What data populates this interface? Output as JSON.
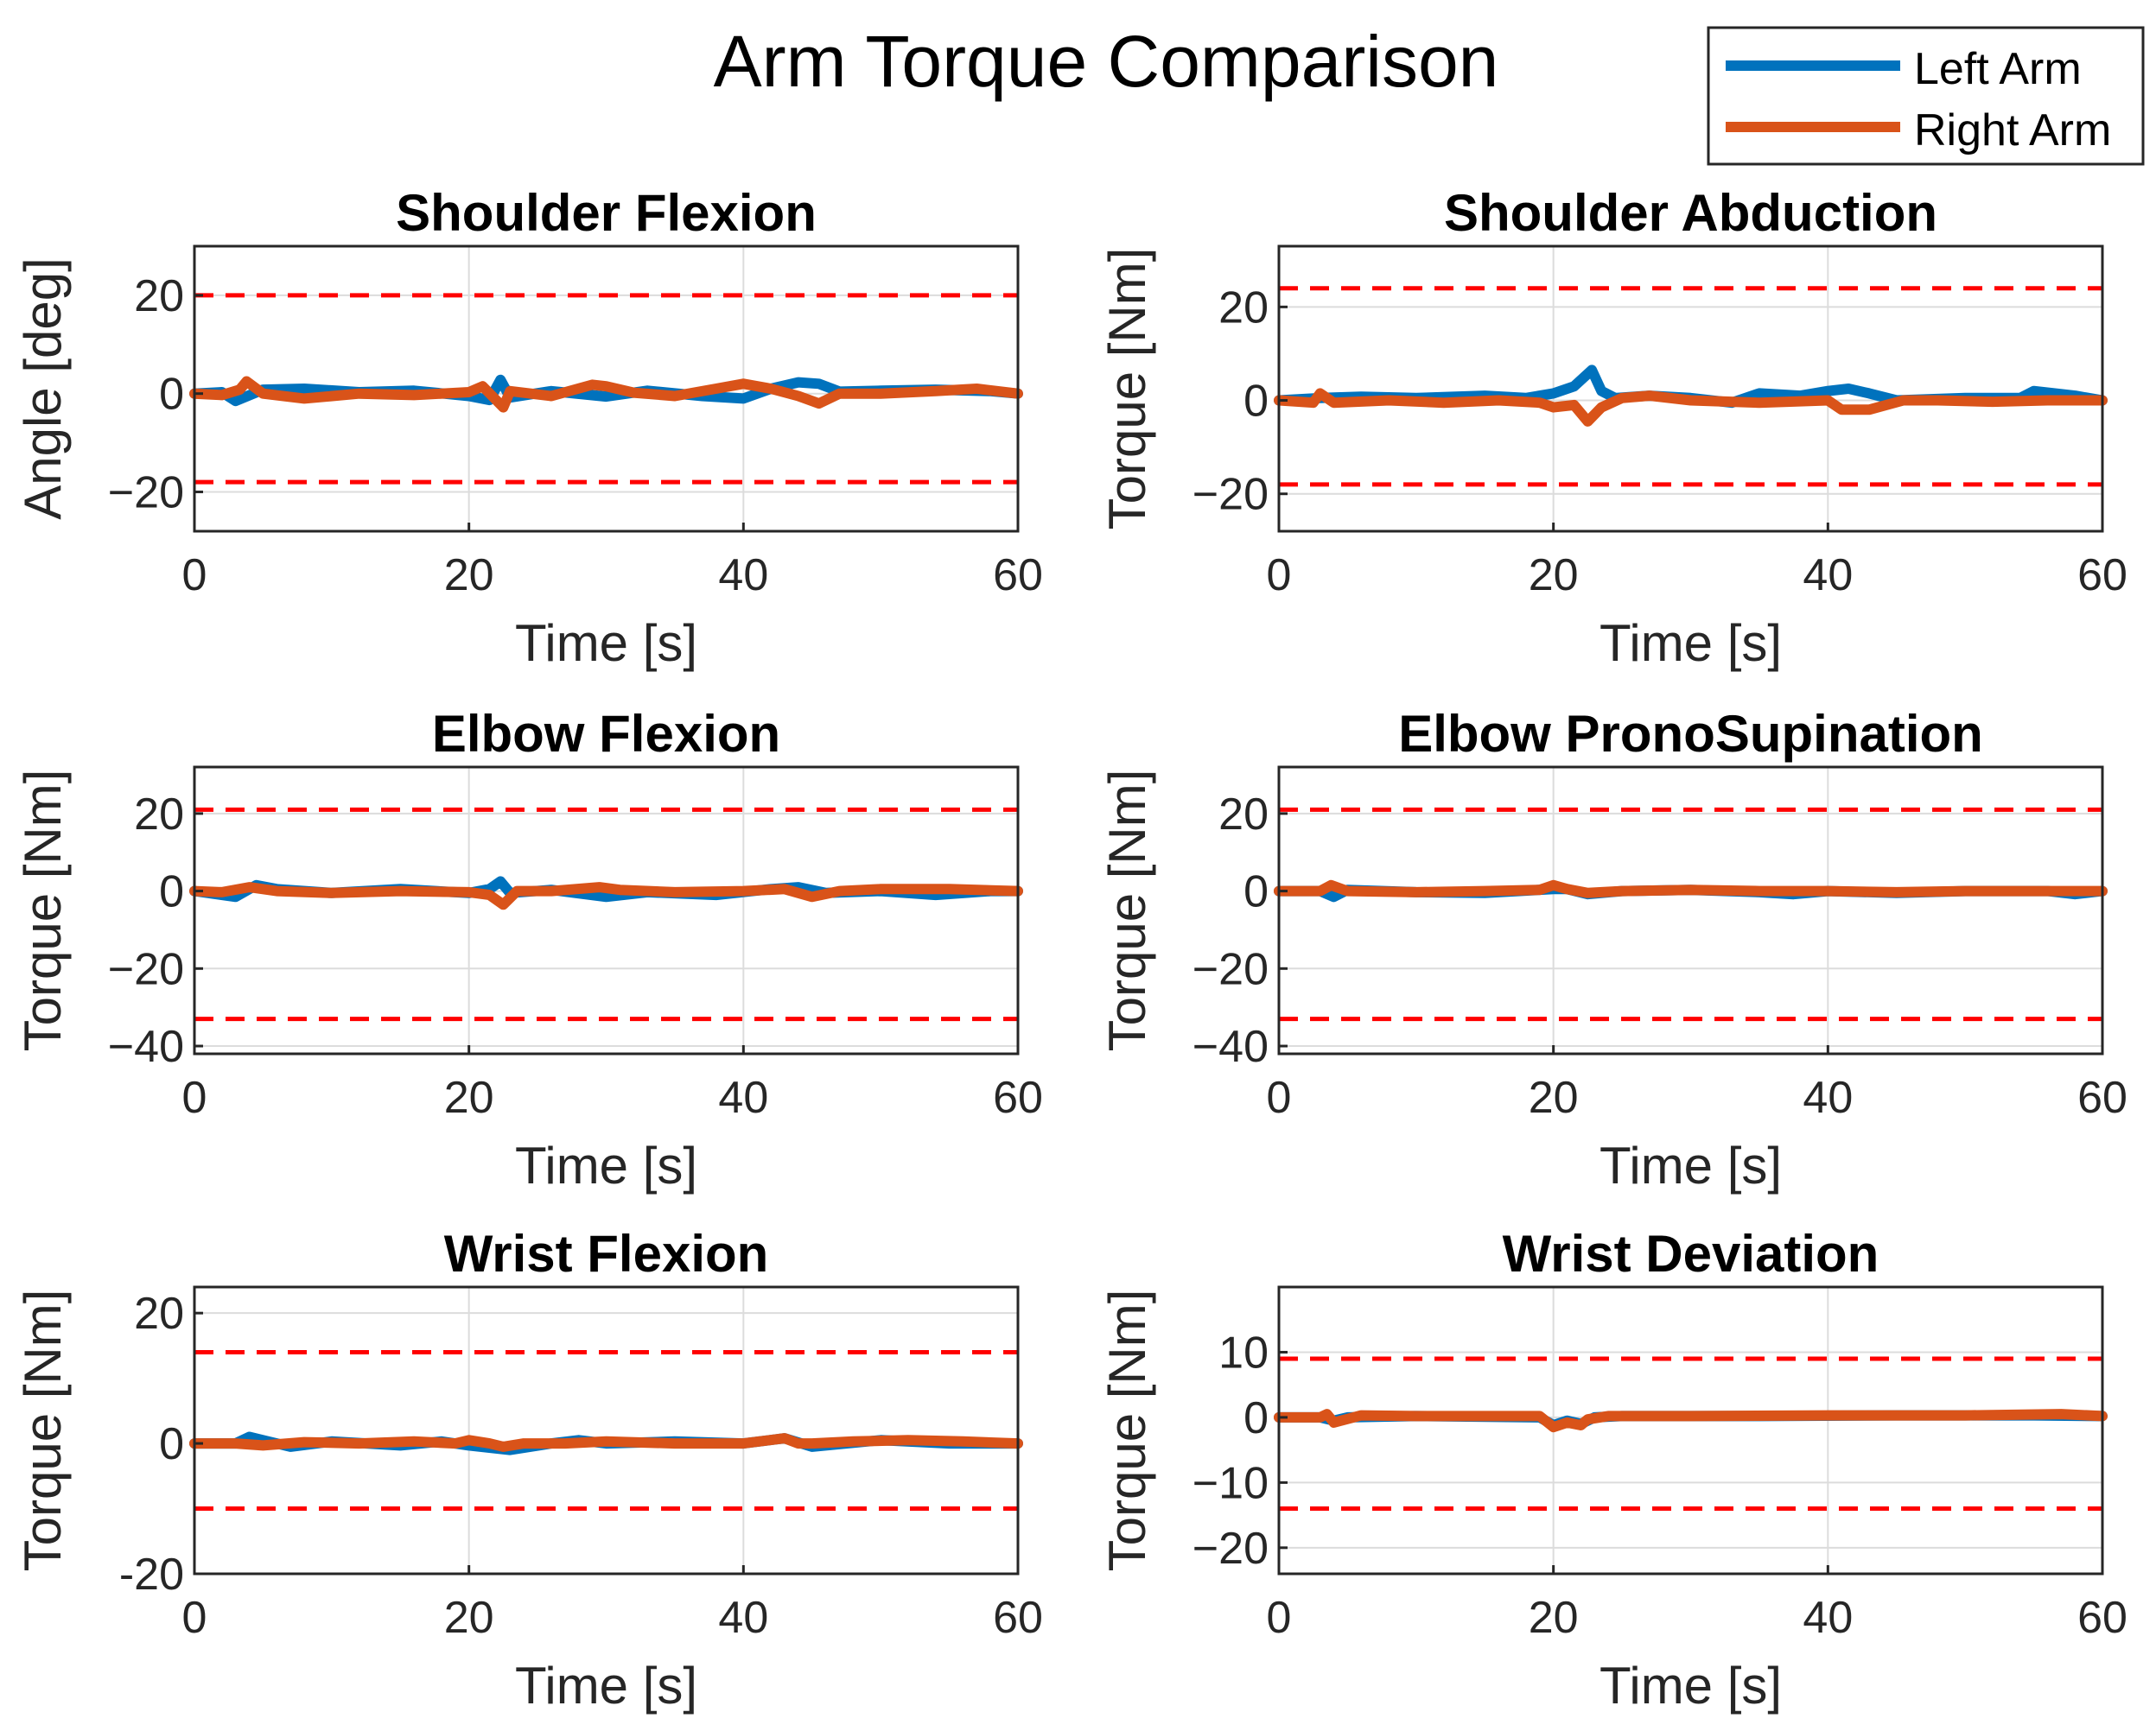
{
  "chart_data": {
    "type": "line",
    "title": "Arm Torque Comparison",
    "legend": {
      "position": "top-right",
      "entries": [
        {
          "name": "Left Arm",
          "color": "#0072BD"
        },
        {
          "name": "Right Arm",
          "color": "#D95319"
        }
      ]
    },
    "limit_color": "#FF0000",
    "grid": true,
    "panels": [
      {
        "title": "Shoulder Flexion",
        "xlabel": "Time [s]",
        "ylabel": "Angle [deg]",
        "xlim": [
          0,
          60
        ],
        "ylim": [
          -28,
          30
        ],
        "xticks": [
          0,
          20,
          40,
          60
        ],
        "xtick_labels": [
          "0",
          "20",
          "40",
          "60"
        ],
        "yticks": [
          -20,
          0,
          20
        ],
        "ytick_labels": [
          "−20",
          "0",
          "20"
        ],
        "limits": [
          20,
          -18
        ],
        "series": [
          {
            "name": "Left Arm",
            "x": [
              0,
              2,
              3,
              5,
              8,
              12,
              16,
              20,
              21.5,
              22.3,
              23,
              26,
              30,
              33,
              37,
              40,
              42,
              44,
              45.5,
              47,
              50,
              54,
              58,
              60
            ],
            "y": [
              0,
              0.3,
              -1.5,
              0.8,
              1,
              0.3,
              0.6,
              -0.5,
              -1.3,
              2.8,
              -0.8,
              0.5,
              -0.6,
              0.6,
              -0.5,
              -1,
              1,
              2.3,
              2,
              0.4,
              0.6,
              0.8,
              0.5,
              0
            ]
          },
          {
            "name": "Right Arm",
            "x": [
              0,
              2,
              3.3,
              3.8,
              5,
              8,
              12,
              16,
              20,
              21,
              22.5,
              23,
              26,
              29,
              30,
              32,
              35,
              38,
              40,
              42,
              44,
              45.5,
              47,
              50,
              54,
              57,
              60
            ],
            "y": [
              0,
              -0.3,
              0.8,
              2.5,
              0,
              -1,
              0,
              -0.3,
              0.3,
              1.5,
              -2.8,
              0.5,
              -0.5,
              1.8,
              1.5,
              0.2,
              -0.5,
              1,
              2,
              1,
              -0.5,
              -2,
              0,
              0,
              0.5,
              1,
              0
            ]
          }
        ]
      },
      {
        "title": "Shoulder Abduction",
        "xlabel": "Time [s]",
        "ylabel": "Torque [Nm]",
        "xlim": [
          0,
          60
        ],
        "ylim": [
          -28,
          33
        ],
        "xticks": [
          0,
          20,
          40,
          60
        ],
        "xtick_labels": [
          "0",
          "20",
          "40",
          "60"
        ],
        "yticks": [
          -20,
          0,
          20
        ],
        "ytick_labels": [
          "−20",
          "0",
          "20"
        ],
        "limits": [
          24,
          -18
        ],
        "series": [
          {
            "name": "Left Arm",
            "x": [
              0,
              3,
              6,
              10,
              15,
              18,
              20,
              21.5,
              22.8,
              23.5,
              24.5,
              27,
              30,
              33,
              35,
              38,
              40,
              41.5,
              43,
              45,
              50,
              54,
              55,
              58,
              60
            ],
            "y": [
              0,
              0.5,
              0.8,
              0.5,
              1,
              0.5,
              1.5,
              3,
              6.5,
              2,
              0.5,
              1,
              0.5,
              -0.5,
              1.5,
              1,
              2,
              2.5,
              1.5,
              0,
              0.5,
              0.5,
              2,
              1,
              0
            ]
          },
          {
            "name": "Right Arm",
            "x": [
              0,
              2.5,
              3,
              4,
              8,
              12,
              16,
              19,
              20,
              21.5,
              22.5,
              23.5,
              25,
              27,
              30,
              35,
              40,
              41,
              43,
              45.5,
              48,
              52,
              56,
              60
            ],
            "y": [
              0,
              -0.5,
              1.5,
              -0.5,
              0,
              -0.5,
              0,
              -0.5,
              -1.5,
              -1,
              -4.5,
              -1.5,
              0.5,
              1,
              0,
              -0.5,
              0,
              -2,
              -2,
              0,
              0,
              -0.3,
              0,
              0
            ]
          }
        ]
      },
      {
        "title": "Elbow Flexion",
        "xlabel": "Time [s]",
        "ylabel": "Torque [Nm]",
        "xlim": [
          0,
          60
        ],
        "ylim": [
          -42,
          32
        ],
        "xticks": [
          0,
          20,
          40,
          60
        ],
        "xtick_labels": [
          "0",
          "20",
          "40",
          "60"
        ],
        "yticks": [
          -40,
          -20,
          0,
          20
        ],
        "ytick_labels": [
          "−40",
          "−20",
          "0",
          "20"
        ],
        "limits": [
          21,
          -33
        ],
        "series": [
          {
            "name": "Left Arm",
            "x": [
              0,
              3,
              4.5,
              6,
              10,
              15,
              20,
              21.5,
              22.3,
              23,
              26,
              30,
              33,
              38,
              42,
              44,
              46,
              50,
              54,
              58,
              60
            ],
            "y": [
              0,
              -1.5,
              1.5,
              0.5,
              -0.5,
              0.5,
              -0.5,
              0.5,
              2.5,
              -0.5,
              0.3,
              -1.5,
              -0.3,
              -1,
              0.5,
              1,
              -0.5,
              0,
              -1,
              0,
              0
            ]
          },
          {
            "name": "Right Arm",
            "x": [
              0,
              2,
              4,
              6,
              10,
              15,
              20,
              21.5,
              22.5,
              23.5,
              26,
              29.5,
              31,
              35,
              40,
              43,
              45,
              47,
              50,
              55,
              60
            ],
            "y": [
              0,
              -0.3,
              1,
              0,
              -0.5,
              0,
              -0.3,
              -1,
              -3.5,
              0,
              0,
              1,
              0.3,
              -0.3,
              0,
              0.5,
              -1.5,
              0,
              0.5,
              0.5,
              0
            ]
          }
        ]
      },
      {
        "title": "Elbow PronoSupination",
        "xlabel": "Time [s]",
        "ylabel": "Torque [Nm]",
        "xlim": [
          0,
          60
        ],
        "ylim": [
          -42,
          32
        ],
        "xticks": [
          0,
          20,
          40,
          60
        ],
        "xtick_labels": [
          "0",
          "20",
          "40",
          "60"
        ],
        "yticks": [
          -40,
          -20,
          0,
          20
        ],
        "ytick_labels": [
          "−40",
          "−20",
          "0",
          "20"
        ],
        "limits": [
          21,
          -33
        ],
        "series": [
          {
            "name": "Left Arm",
            "x": [
              0,
              3,
              4,
              5,
              10,
              15,
              20,
              21,
              22.5,
              25,
              30,
              35,
              37.5,
              40,
              45,
              50,
              56,
              58,
              60
            ],
            "y": [
              0,
              0,
              -1.5,
              0.3,
              -0.3,
              -0.5,
              0.5,
              0.5,
              -0.8,
              0,
              0.3,
              -0.3,
              -0.8,
              0,
              -0.5,
              0,
              0,
              -0.8,
              0
            ]
          },
          {
            "name": "Right Arm",
            "x": [
              0,
              3,
              3.8,
              5,
              10,
              15,
              19,
              20,
              21,
              22.5,
              25,
              30,
              35,
              40,
              45,
              50,
              55,
              60
            ],
            "y": [
              0,
              0,
              1.5,
              0,
              -0.3,
              0,
              0.3,
              1.5,
              0.5,
              -0.5,
              0,
              0.3,
              0,
              0,
              -0.3,
              0,
              0,
              0
            ]
          }
        ]
      },
      {
        "title": "Wrist Flexion",
        "xlabel": "Time [s]",
        "ylabel": "Torque [Nm]",
        "xlim": [
          0,
          60
        ],
        "ylim": [
          -20,
          24
        ],
        "xticks": [
          0,
          20,
          40,
          60
        ],
        "xtick_labels": [
          "0",
          "20",
          "40",
          "60"
        ],
        "yticks": [
          -20,
          0,
          20
        ],
        "ytick_labels": [
          "-20",
          "0",
          "20"
        ],
        "limits": [
          14,
          -10
        ],
        "series": [
          {
            "name": "Left Arm",
            "x": [
              0,
              3,
              4,
              5,
              7,
              10,
              15,
              18,
              20,
              23,
              26,
              28,
              30,
              35,
              40,
              43,
              45,
              50,
              55,
              60
            ],
            "y": [
              0,
              0,
              1,
              0.5,
              -0.5,
              0.3,
              -0.3,
              0.3,
              -0.3,
              -1,
              0,
              0.5,
              0,
              0.3,
              0,
              0.8,
              -0.5,
              0.5,
              0,
              0
            ]
          },
          {
            "name": "Right Arm",
            "x": [
              0,
              3,
              5,
              8,
              12,
              16,
              19,
              20,
              21.5,
              22.5,
              24,
              27,
              30,
              35,
              40,
              43,
              44,
              45,
              48,
              52,
              56,
              60
            ],
            "y": [
              0,
              0,
              -0.3,
              0.2,
              0,
              0.3,
              0,
              0.5,
              0,
              -0.5,
              0,
              0,
              0.3,
              0,
              0,
              0.8,
              0,
              0,
              0.3,
              0.5,
              0.3,
              0
            ]
          }
        ]
      },
      {
        "title": "Wrist Deviation",
        "xlabel": "Time [s]",
        "ylabel": "Torque [Nm]",
        "xlim": [
          0,
          60
        ],
        "ylim": [
          -24,
          20
        ],
        "xticks": [
          0,
          20,
          40,
          60
        ],
        "xtick_labels": [
          "0",
          "20",
          "40",
          "60"
        ],
        "yticks": [
          -20,
          -10,
          0,
          10
        ],
        "ytick_labels": [
          "−20",
          "−10",
          "0",
          "10"
        ],
        "limits": [
          9,
          -14
        ],
        "series": [
          {
            "name": "Left Arm",
            "x": [
              0,
              3,
              4,
              5,
              10,
              19,
              20,
              21,
              22,
              23,
              25,
              35,
              45,
              55,
              60
            ],
            "y": [
              0,
              0,
              -0.5,
              0,
              0.2,
              0,
              -1.2,
              -0.5,
              -1,
              0,
              0.2,
              0.2,
              0.3,
              0.3,
              0.2
            ]
          },
          {
            "name": "Right Arm",
            "x": [
              0,
              3,
              3.5,
              4,
              6,
              10,
              19,
              20,
              21,
              22,
              22.5,
              24,
              30,
              40,
              50,
              57,
              60
            ],
            "y": [
              0,
              0,
              0.5,
              -0.8,
              0.3,
              0.2,
              0.2,
              -1.5,
              -0.8,
              -1.2,
              -0.3,
              0.2,
              0.2,
              0.3,
              0.3,
              0.5,
              0.2
            ]
          }
        ]
      }
    ]
  }
}
